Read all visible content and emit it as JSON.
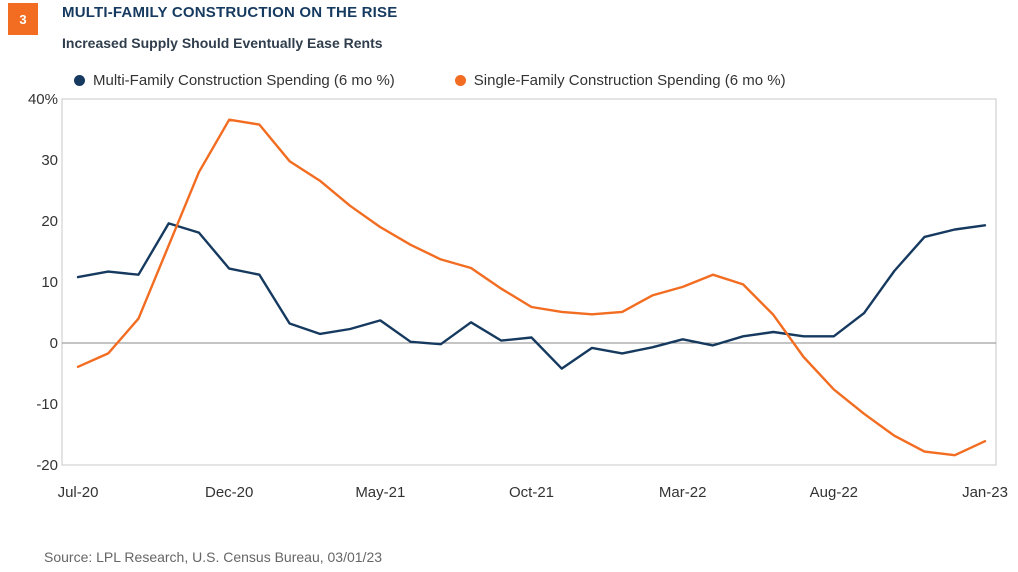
{
  "header": {
    "badge": "3",
    "title": "MULTI-FAMILY CONSTRUCTION ON THE RISE",
    "subtitle": "Increased Supply Should Eventually Ease Rents"
  },
  "footer": {
    "source": "Source: LPL Research, U.S. Census Bureau, 03/01/23"
  },
  "colors": {
    "multi": "#163a5f",
    "single": "#f26d21",
    "badge": "#f26d21"
  },
  "chart_data": {
    "type": "line",
    "title": "MULTI-FAMILY CONSTRUCTION ON THE RISE",
    "subtitle": "Increased Supply Should Eventually Ease Rents",
    "xlabel": "",
    "ylabel": "",
    "ylim": [
      -20,
      40
    ],
    "yticks": [
      "40%",
      "30",
      "20",
      "10",
      "0",
      "-10",
      "-20"
    ],
    "ytick_values": [
      40,
      30,
      20,
      10,
      0,
      -10,
      -20
    ],
    "xticks": [
      "Jul-20",
      "Dec-20",
      "May-21",
      "Oct-21",
      "Mar-22",
      "Aug-22",
      "Jan-23"
    ],
    "xtick_index": [
      0,
      5,
      10,
      15,
      20,
      25,
      30
    ],
    "legend_position": "top-left",
    "grid": false,
    "x": [
      "Jul-20",
      "Aug-20",
      "Sep-20",
      "Oct-20",
      "Nov-20",
      "Dec-20",
      "Jan-21",
      "Feb-21",
      "Mar-21",
      "Apr-21",
      "May-21",
      "Jun-21",
      "Jul-21",
      "Aug-21",
      "Sep-21",
      "Oct-21",
      "Nov-21",
      "Dec-21",
      "Jan-22",
      "Feb-22",
      "Mar-22",
      "Apr-22",
      "May-22",
      "Jun-22",
      "Jul-22",
      "Aug-22",
      "Sep-22",
      "Oct-22",
      "Nov-22",
      "Dec-22",
      "Jan-23"
    ],
    "series": [
      {
        "name": "Multi-Family Construction Spending (6 mo %)",
        "color": "#163a5f",
        "values": [
          10.8,
          11.7,
          11.2,
          19.6,
          18.1,
          12.2,
          11.2,
          3.2,
          1.5,
          2.3,
          3.7,
          0.2,
          -0.2,
          3.4,
          0.4,
          0.9,
          -4.2,
          -0.8,
          -1.7,
          -0.7,
          0.6,
          -0.4,
          1.1,
          1.8,
          1.1,
          1.1,
          4.9,
          11.8,
          17.4,
          18.6,
          19.3
        ]
      },
      {
        "name": "Single-Family Construction Spending (6 mo %)",
        "color": "#f26d21",
        "values": [
          -3.9,
          -1.7,
          4.0,
          16.0,
          28.0,
          36.6,
          35.8,
          29.8,
          26.6,
          22.5,
          19.0,
          16.1,
          13.7,
          12.3,
          8.9,
          5.9,
          5.1,
          4.7,
          5.1,
          7.8,
          9.2,
          11.2,
          9.6,
          4.6,
          -2.3,
          -7.6,
          -11.6,
          -15.2,
          -17.8,
          -18.4,
          -16.1
        ]
      }
    ]
  }
}
